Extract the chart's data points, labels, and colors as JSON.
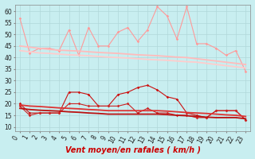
{
  "x": [
    0,
    1,
    2,
    3,
    4,
    5,
    6,
    7,
    8,
    9,
    10,
    11,
    12,
    13,
    14,
    15,
    16,
    17,
    18,
    19,
    20,
    21,
    22,
    23
  ],
  "series": [
    {
      "name": "rafales_high",
      "color": "#ff9999",
      "lw": 0.8,
      "marker": "D",
      "markersize": 1.8,
      "values": [
        57,
        42,
        44,
        44,
        43,
        52,
        41,
        53,
        45,
        45,
        51,
        53,
        47,
        52,
        62,
        58,
        48,
        62,
        46,
        46,
        44,
        41,
        43,
        34
      ]
    },
    {
      "name": "trend_high1",
      "color": "#ffbbbb",
      "lw": 1.3,
      "marker": null,
      "markersize": 0,
      "values": [
        45,
        44.5,
        44,
        43.5,
        43.2,
        43,
        42.8,
        42.5,
        42.2,
        42,
        41.8,
        41.5,
        41.2,
        41,
        40.8,
        40.5,
        40.2,
        40,
        39.5,
        39,
        38.5,
        38,
        37.5,
        37
      ]
    },
    {
      "name": "trend_high2",
      "color": "#ffcccc",
      "lw": 1.3,
      "marker": null,
      "markersize": 0,
      "values": [
        43,
        42.5,
        42,
        41.8,
        41.5,
        41.2,
        41,
        40.8,
        40.5,
        40.2,
        40,
        39.8,
        39.5,
        39.2,
        39,
        38.8,
        38.5,
        38.2,
        38,
        37.5,
        37,
        36.5,
        36,
        35.5
      ]
    },
    {
      "name": "rafales_low",
      "color": "#cc1111",
      "lw": 0.8,
      "marker": "D",
      "markersize": 1.8,
      "values": [
        20,
        16,
        16,
        16,
        16,
        25,
        25,
        24,
        19,
        19,
        24,
        25,
        27,
        28,
        26,
        23,
        22,
        16,
        15,
        14,
        17,
        17,
        17,
        13
      ]
    },
    {
      "name": "vent_low1",
      "color": "#cc2222",
      "lw": 0.8,
      "marker": "D",
      "markersize": 1.8,
      "values": [
        19,
        15,
        16,
        16,
        16,
        20,
        20,
        19,
        19,
        19,
        19,
        20,
        16,
        18,
        16,
        16,
        15,
        15,
        14,
        14,
        17,
        17,
        17,
        13
      ]
    },
    {
      "name": "trend_low1",
      "color": "#dd3333",
      "lw": 1.3,
      "marker": null,
      "markersize": 0,
      "values": [
        19.5,
        19,
        18.8,
        18.5,
        18.2,
        18,
        17.8,
        17.5,
        17.3,
        17,
        17,
        17,
        17,
        17,
        17,
        16.8,
        16.5,
        16.2,
        16,
        15.8,
        15.5,
        15.2,
        15,
        14.5
      ]
    },
    {
      "name": "trend_low2",
      "color": "#bb1111",
      "lw": 1.3,
      "marker": null,
      "markersize": 0,
      "values": [
        18,
        17.5,
        17.2,
        17,
        16.8,
        16.5,
        16.3,
        16,
        15.8,
        15.5,
        15.5,
        15.5,
        15.5,
        15.5,
        15.5,
        15.3,
        15,
        14.8,
        14.5,
        14.2,
        14,
        14,
        14,
        13.5
      ]
    }
  ],
  "xlabel": "Vent moyen/en rafales ( km/h )",
  "xlim": [
    -0.5,
    23.5
  ],
  "ylim": [
    8,
    63
  ],
  "yticks": [
    10,
    15,
    20,
    25,
    30,
    35,
    40,
    45,
    50,
    55,
    60
  ],
  "xticks": [
    0,
    1,
    2,
    3,
    4,
    5,
    6,
    7,
    8,
    9,
    10,
    11,
    12,
    13,
    14,
    15,
    16,
    17,
    18,
    19,
    20,
    21,
    22,
    23
  ],
  "background_color": "#c8eef0",
  "grid_color": "#b0d8da",
  "xlabel_color": "#cc0000",
  "xlabel_fontsize": 7,
  "tick_fontsize": 5.5
}
